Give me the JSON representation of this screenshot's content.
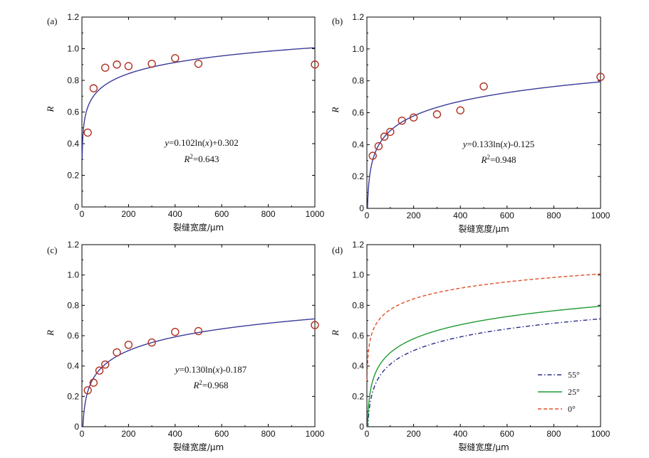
{
  "colors": {
    "fit_line": "#3a3a9a",
    "marker": "#b03020",
    "axis": "#000000",
    "line_55": "#2a2a8a",
    "line_25": "#1e9a30",
    "line_0": "#e05028"
  },
  "chart_data": [
    {
      "panel": "(a)",
      "type": "scatter",
      "xlabel": "裂缝宽度/μm",
      "ylabel": "R",
      "xlim": [
        0,
        1000
      ],
      "ylim": [
        0,
        1.2
      ],
      "xticks": [
        "0",
        "200",
        "400",
        "600",
        "800",
        "1000"
      ],
      "yticks": [
        "0",
        "0.2",
        "0.4",
        "0.6",
        "0.8",
        "1.0",
        "1.2"
      ],
      "points": {
        "x": [
          25,
          50,
          100,
          150,
          200,
          300,
          400,
          500,
          1000
        ],
        "y": [
          0.47,
          0.75,
          0.88,
          0.9,
          0.89,
          0.905,
          0.94,
          0.905,
          0.9
        ]
      },
      "fit": {
        "a": 0.102,
        "b": 0.302
      },
      "equation": {
        "y": "y",
        "mid": "=0.102ln(",
        "x": "x",
        "tail": ")+0.302"
      },
      "r2": {
        "R": "R",
        "sup": "2",
        "val": "=0.643"
      }
    },
    {
      "panel": "(b)",
      "type": "scatter",
      "xlabel": "裂缝宽度/μm",
      "ylabel": "R",
      "xlim": [
        0,
        1000
      ],
      "ylim": [
        0,
        1.2
      ],
      "xticks": [
        "0",
        "200",
        "400",
        "600",
        "800",
        "1000"
      ],
      "yticks": [
        "0",
        "0.2",
        "0.4",
        "0.6",
        "0.8",
        "1.0",
        "1.2"
      ],
      "points": {
        "x": [
          25,
          50,
          75,
          100,
          150,
          200,
          300,
          400,
          500,
          1000
        ],
        "y": [
          0.33,
          0.39,
          0.45,
          0.48,
          0.55,
          0.57,
          0.59,
          0.615,
          0.765,
          0.825
        ]
      },
      "fit": {
        "a": 0.133,
        "b": -0.125
      },
      "equation": {
        "y": "y",
        "mid": "=0.133ln(",
        "x": "x",
        "tail": ")-0.125"
      },
      "r2": {
        "R": "R",
        "sup": "2",
        "val": "=0.948"
      }
    },
    {
      "panel": "(c)",
      "type": "scatter",
      "xlabel": "裂缝宽度/μm",
      "ylabel": "R",
      "xlim": [
        0,
        1000
      ],
      "ylim": [
        0,
        1.2
      ],
      "xticks": [
        "0",
        "200",
        "400",
        "600",
        "800",
        "1000"
      ],
      "yticks": [
        "0",
        "0.2",
        "0.4",
        "0.6",
        "0.8",
        "1.0",
        "1.2"
      ],
      "points": {
        "x": [
          25,
          50,
          75,
          100,
          150,
          200,
          300,
          400,
          500,
          1000
        ],
        "y": [
          0.24,
          0.29,
          0.37,
          0.41,
          0.49,
          0.54,
          0.555,
          0.625,
          0.63,
          0.67
        ]
      },
      "fit": {
        "a": 0.13,
        "b": -0.187
      },
      "equation": {
        "y": "y",
        "mid": "=0.130ln(",
        "x": "x",
        "tail": ")-0.187"
      },
      "r2": {
        "R": "R",
        "sup": "2",
        "val": "=0.968"
      }
    },
    {
      "panel": "(d)",
      "type": "line",
      "xlabel": "裂缝宽度/μm",
      "ylabel": "R",
      "xlim": [
        0,
        1000
      ],
      "ylim": [
        0,
        1.2
      ],
      "xticks": [
        "0",
        "200",
        "400",
        "600",
        "800",
        "1000"
      ],
      "yticks": [
        "0",
        "0.2",
        "0.4",
        "0.6",
        "0.8",
        "1.0",
        "1.2"
      ],
      "legend_position": "bottom-right",
      "series": [
        {
          "name": "55°",
          "a": 0.13,
          "b": -0.187,
          "style": "dashdot",
          "color": "#2a2a8a"
        },
        {
          "name": "25°",
          "a": 0.133,
          "b": -0.125,
          "style": "solid",
          "color": "#1e9a30"
        },
        {
          "name": "0°",
          "a": 0.102,
          "b": 0.302,
          "style": "dashed",
          "color": "#e05028"
        }
      ]
    }
  ]
}
